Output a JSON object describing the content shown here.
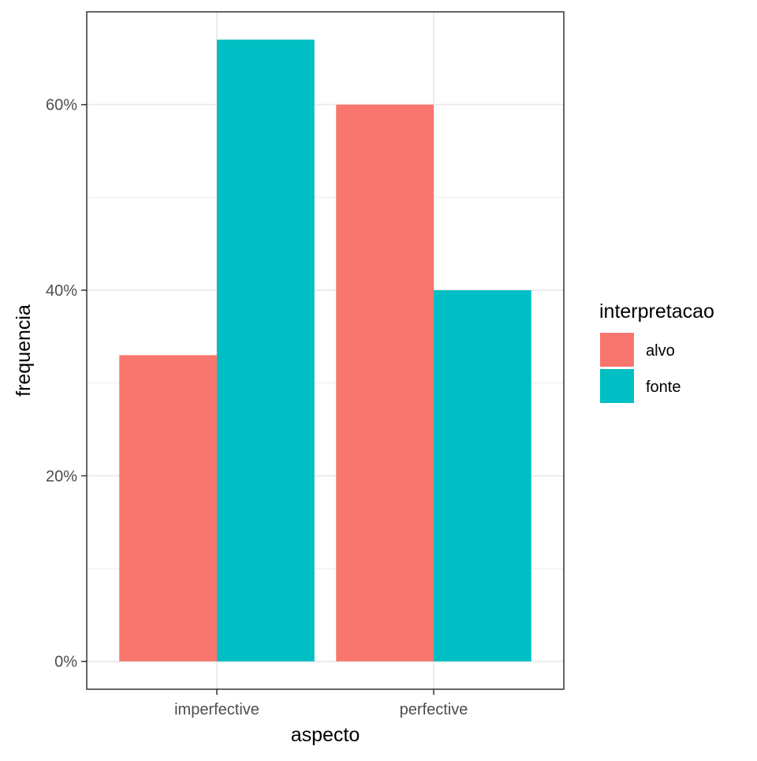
{
  "chart_data": {
    "type": "bar",
    "xlabel": "aspecto",
    "ylabel": "frequencia",
    "categories": [
      "imperfective",
      "perfective"
    ],
    "series": [
      {
        "name": "alvo",
        "color": "#F8766D",
        "values": [
          0.33,
          0.6
        ]
      },
      {
        "name": "fonte",
        "color": "#00BFC4",
        "values": [
          0.67,
          0.4
        ]
      }
    ],
    "ylim": [
      -0.03,
      0.7
    ],
    "y_ticks": [
      0,
      0.2,
      0.4,
      0.6
    ],
    "y_tick_labels": [
      "0%",
      "20%",
      "40%",
      "60%"
    ],
    "grid": true,
    "legend": {
      "title": "interpretacao",
      "position": "right"
    }
  }
}
